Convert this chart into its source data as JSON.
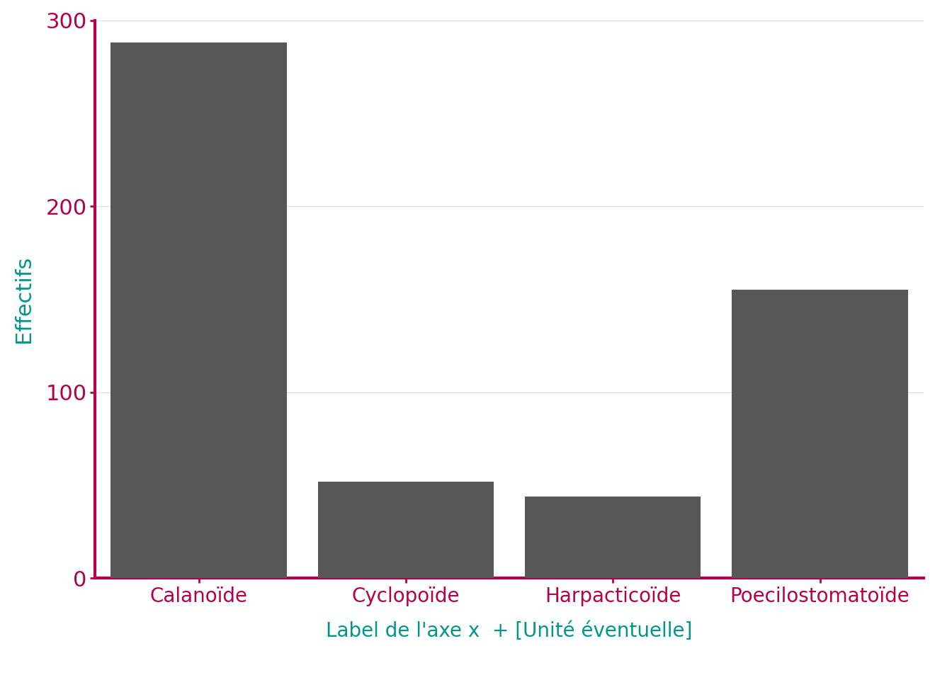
{
  "categories": [
    "Calanoïde",
    "Cyclopoïde",
    "Harpacticoïde",
    "Poecilostomatoïde"
  ],
  "values": [
    288,
    52,
    44,
    155
  ],
  "bar_color": "#575757",
  "ylabel": "Effectifs",
  "xlabel": "Label de l'axe x  + [Unité éventuelle]",
  "ylabel_color": "#009688",
  "xlabel_color": "#009688",
  "tick_label_color": "#b5004b",
  "axis_color": "#b5004b",
  "ylim": [
    0,
    300
  ],
  "yticks": [
    0,
    100,
    200,
    300
  ],
  "grid_color": "#e0e0e0",
  "background_color": "#ffffff",
  "bar_width": 0.85,
  "ylabel_fontsize": 22,
  "xlabel_fontsize": 20,
  "tick_label_fontsize": 20,
  "ytick_label_fontsize": 22,
  "spine_linewidth": 3.0
}
